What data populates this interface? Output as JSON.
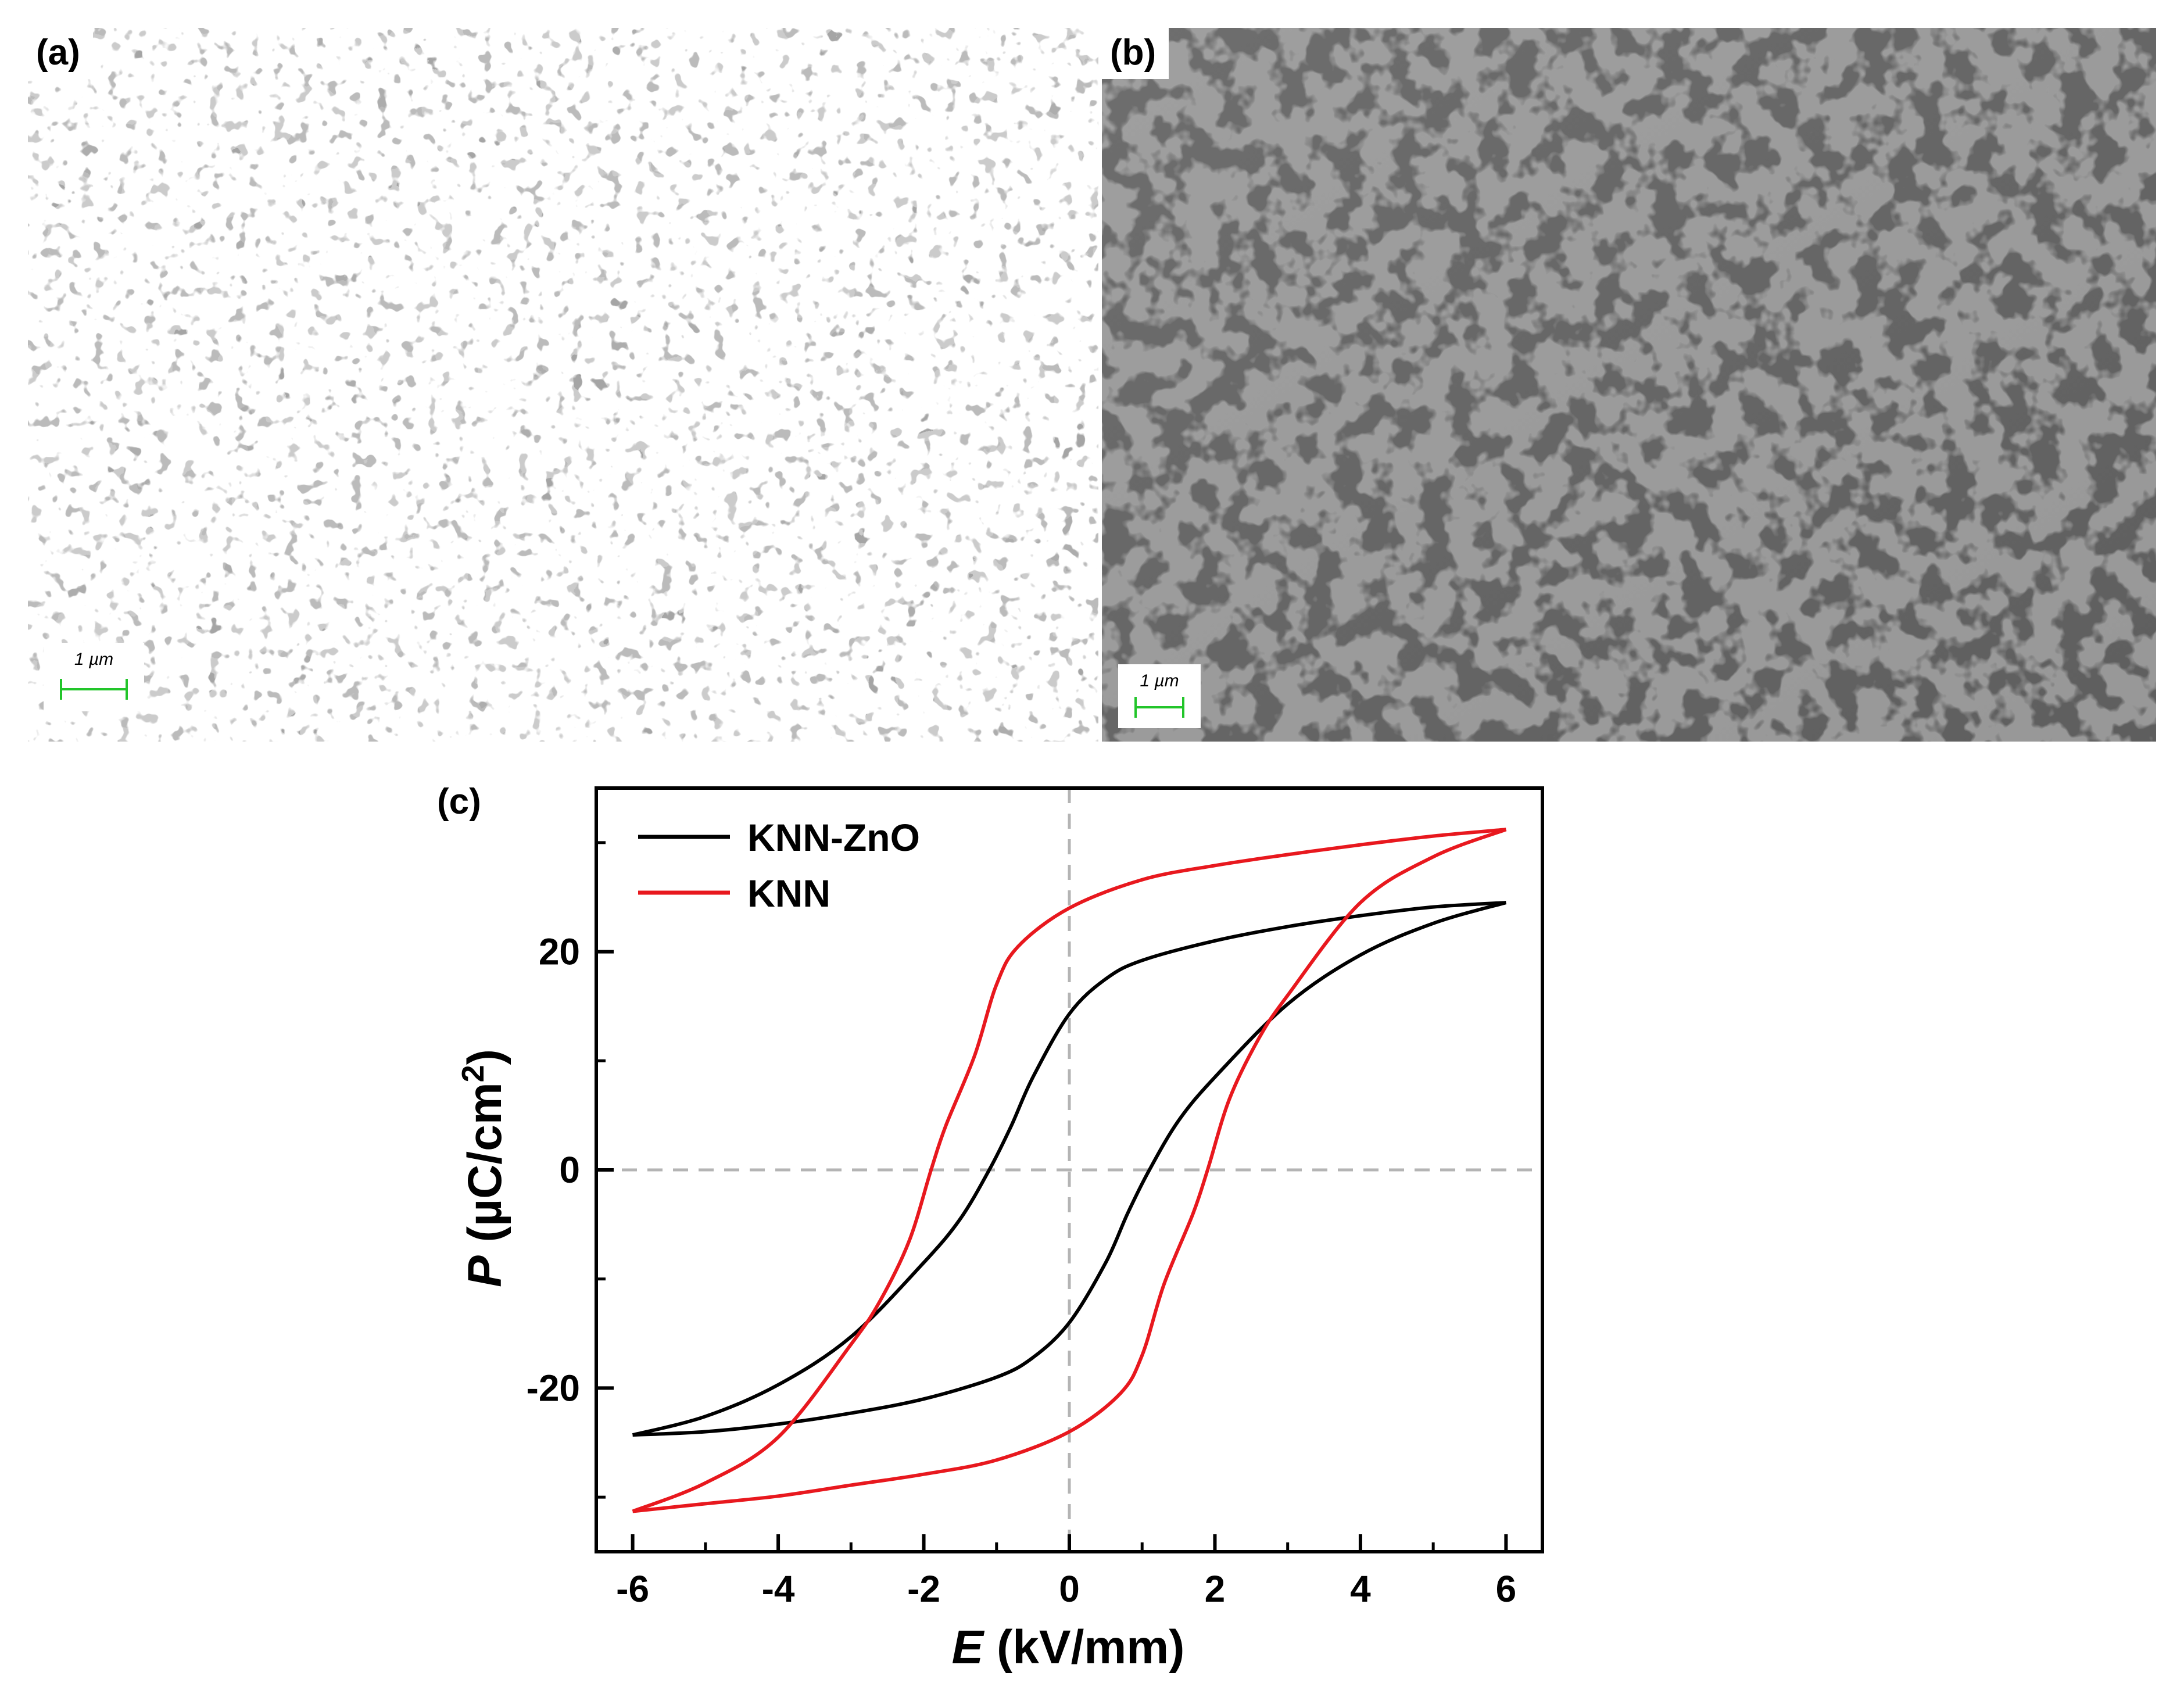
{
  "panels": {
    "a": {
      "label": "(a)",
      "scale_bar": "1 µm"
    },
    "b": {
      "label": "(b)",
      "scale_bar": "1 µm"
    },
    "c": {
      "label": "(c)"
    }
  },
  "colors": {
    "knn_zno": "#000000",
    "knn": "#e8181e",
    "scale_bar": "#22c52a"
  },
  "chart_data": {
    "type": "line",
    "title": "",
    "xlabel": {
      "var": "E",
      "unit": " (kV/mm)"
    },
    "ylabel": {
      "var": "P",
      "unit_pre": " (µC/cm",
      "sup": "2",
      "unit_post": ")"
    },
    "xlim": [
      -6.5,
      6.5
    ],
    "ylim": [
      -35,
      35
    ],
    "xticks": [
      -6,
      -4,
      -2,
      0,
      2,
      4,
      6
    ],
    "yticks": [
      -20,
      0,
      20
    ],
    "legend": "top-left",
    "grid": false,
    "reference_lines": {
      "x": 0,
      "y": 0
    },
    "series": [
      {
        "name": "KNN-ZnO",
        "color": "#000000",
        "upper_branch": [
          [
            6,
            24.5
          ],
          [
            5,
            24.1
          ],
          [
            4,
            23.3
          ],
          [
            3,
            22.3
          ],
          [
            2,
            21.0
          ],
          [
            1,
            19.2
          ],
          [
            0.5,
            17.5
          ],
          [
            0,
            14.3
          ],
          [
            -0.5,
            8.5
          ],
          [
            -0.8,
            4.0
          ],
          [
            -1.1,
            0
          ],
          [
            -1.5,
            -4.5
          ],
          [
            -2,
            -8.5
          ],
          [
            -3,
            -15.3
          ],
          [
            -4,
            -19.7
          ],
          [
            -5,
            -22.6
          ],
          [
            -6,
            -24.3
          ]
        ],
        "lower_branch": [
          [
            -6,
            -24.3
          ],
          [
            -5,
            -24.0
          ],
          [
            -4,
            -23.3
          ],
          [
            -3,
            -22.3
          ],
          [
            -2,
            -21.0
          ],
          [
            -1,
            -19.0
          ],
          [
            -0.5,
            -17.2
          ],
          [
            0,
            -14.0
          ],
          [
            0.5,
            -8.5
          ],
          [
            0.8,
            -4.0
          ],
          [
            1.1,
            0
          ],
          [
            1.5,
            4.5
          ],
          [
            2,
            8.5
          ],
          [
            3,
            15.2
          ],
          [
            4,
            19.7
          ],
          [
            5,
            22.6
          ],
          [
            6,
            24.5
          ]
        ]
      },
      {
        "name": "KNN",
        "color": "#e8181e",
        "upper_branch": [
          [
            6,
            31.2
          ],
          [
            5,
            30.6
          ],
          [
            4,
            29.8
          ],
          [
            3,
            28.9
          ],
          [
            2,
            27.9
          ],
          [
            1,
            26.6
          ],
          [
            0,
            24.0
          ],
          [
            -0.7,
            20.5
          ],
          [
            -1,
            17.0
          ],
          [
            -1.3,
            10.5
          ],
          [
            -1.7,
            4.0
          ],
          [
            -1.9,
            0
          ],
          [
            -2.2,
            -6.5
          ],
          [
            -2.6,
            -12.0
          ],
          [
            -3,
            -16.0
          ],
          [
            -4,
            -24.5
          ],
          [
            -5,
            -28.7
          ],
          [
            -6,
            -31.3
          ]
        ],
        "lower_branch": [
          [
            -6,
            -31.3
          ],
          [
            -5,
            -30.6
          ],
          [
            -4,
            -29.9
          ],
          [
            -3,
            -28.9
          ],
          [
            -2,
            -27.9
          ],
          [
            -1,
            -26.6
          ],
          [
            0,
            -24.0
          ],
          [
            0.7,
            -20.5
          ],
          [
            1,
            -17.0
          ],
          [
            1.3,
            -10.5
          ],
          [
            1.7,
            -4.0
          ],
          [
            1.9,
            0
          ],
          [
            2.2,
            6.5
          ],
          [
            2.6,
            12.0
          ],
          [
            3,
            16.0
          ],
          [
            4,
            24.5
          ],
          [
            5,
            28.7
          ],
          [
            6,
            31.2
          ]
        ]
      }
    ]
  }
}
